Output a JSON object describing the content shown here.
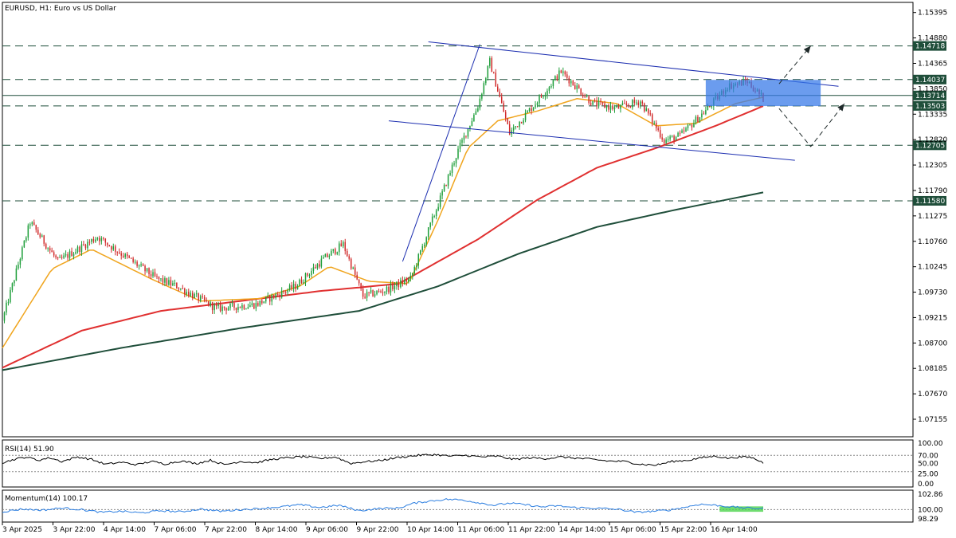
{
  "chart_data": {
    "type": "candlestick",
    "title": "EURUSD, H1:  Euro vs US Dollar",
    "price_axis": {
      "range": [
        1.068,
        1.156
      ],
      "ticks": [
        "1.15395",
        "1.14880",
        "1.14365",
        "1.13850",
        "1.13335",
        "1.12820",
        "1.12305",
        "1.11790",
        "1.11275",
        "1.10760",
        "1.10245",
        "1.09730",
        "1.09215",
        "1.08700",
        "1.08185",
        "1.07670",
        "1.07155"
      ]
    },
    "x_labels": [
      "3 Apr 2025",
      "3 Apr 22:00",
      "4 Apr 14:00",
      "7 Apr 06:00",
      "7 Apr 22:00",
      "8 Apr 14:00",
      "9 Apr 06:00",
      "9 Apr 22:00",
      "10 Apr 14:00",
      "11 Apr 06:00",
      "11 Apr 22:00",
      "14 Apr 14:00",
      "15 Apr 06:00",
      "15 Apr 22:00",
      "16 Apr 14:00"
    ],
    "levels": [
      {
        "value": 1.14718,
        "label": "1.14718",
        "style": "dashed"
      },
      {
        "value": 1.14037,
        "label": "1.14037",
        "style": "dashed"
      },
      {
        "value": 1.13714,
        "label": "1.13714",
        "style": "solid"
      },
      {
        "value": 1.13503,
        "label": "1.13503",
        "style": "dashed"
      },
      {
        "value": 1.12705,
        "label": "1.12705",
        "style": "dashed"
      },
      {
        "value": 1.1158,
        "label": "1.11580",
        "style": "dashed"
      }
    ],
    "colors": {
      "bull": "#1e9e3a",
      "bear": "#d12a2a",
      "ma_fast": "#f0a51e",
      "ma_mid": "#e03030",
      "ma_slow": "#1f4e3a",
      "channel": "#1c2eb0",
      "box": "#3a7be8",
      "rsi": "#000000",
      "momentum": "#2a7de0",
      "momentum_box": "#4cd34c"
    },
    "anchors": [
      [
        0,
        1.0915
      ],
      [
        14,
        1.1115
      ],
      [
        28,
        1.1035
      ],
      [
        48,
        1.1085
      ],
      [
        78,
        1.1
      ],
      [
        88,
        1.0985
      ],
      [
        108,
        1.094
      ],
      [
        128,
        1.0948
      ],
      [
        148,
        1.0985
      ],
      [
        162,
        1.104
      ],
      [
        172,
        1.107
      ],
      [
        182,
        1.0965
      ],
      [
        192,
        1.0975
      ],
      [
        206,
        1.1
      ],
      [
        230,
        1.126
      ],
      [
        240,
        1.135
      ],
      [
        246,
        1.144
      ],
      [
        256,
        1.1295
      ],
      [
        272,
        1.137
      ],
      [
        282,
        1.142
      ],
      [
        298,
        1.1355
      ],
      [
        310,
        1.1345
      ],
      [
        322,
        1.136
      ],
      [
        334,
        1.128
      ],
      [
        342,
        1.129
      ],
      [
        356,
        1.1345
      ],
      [
        366,
        1.139
      ],
      [
        376,
        1.14
      ],
      [
        384,
        1.1365
      ]
    ],
    "ma_fast": [
      [
        0,
        1.086
      ],
      [
        25,
        1.102
      ],
      [
        45,
        1.106
      ],
      [
        75,
        1.1
      ],
      [
        100,
        1.0955
      ],
      [
        130,
        1.096
      ],
      [
        150,
        1.0985
      ],
      [
        165,
        1.1025
      ],
      [
        185,
        1.0995
      ],
      [
        205,
        1.099
      ],
      [
        220,
        1.112
      ],
      [
        235,
        1.1265
      ],
      [
        250,
        1.132
      ],
      [
        270,
        1.134
      ],
      [
        290,
        1.1365
      ],
      [
        310,
        1.1355
      ],
      [
        330,
        1.131
      ],
      [
        350,
        1.1315
      ],
      [
        370,
        1.1355
      ],
      [
        384,
        1.1368
      ]
    ],
    "ma_mid": [
      [
        0,
        1.082
      ],
      [
        40,
        1.0895
      ],
      [
        80,
        1.0935
      ],
      [
        120,
        1.0955
      ],
      [
        160,
        1.0975
      ],
      [
        200,
        1.099
      ],
      [
        240,
        1.108
      ],
      [
        270,
        1.116
      ],
      [
        300,
        1.1225
      ],
      [
        330,
        1.1265
      ],
      [
        360,
        1.131
      ],
      [
        384,
        1.135
      ]
    ],
    "ma_slow": [
      [
        0,
        1.0815
      ],
      [
        60,
        1.086
      ],
      [
        120,
        1.09
      ],
      [
        180,
        1.0935
      ],
      [
        220,
        1.0985
      ],
      [
        260,
        1.105
      ],
      [
        300,
        1.1105
      ],
      [
        340,
        1.114
      ],
      [
        384,
        1.1175
      ]
    ],
    "channel_lines": [
      {
        "from": [
          215,
          1.148
        ],
        "to": [
          422,
          1.139
        ]
      },
      {
        "from": [
          195,
          1.132
        ],
        "to": [
          400,
          1.124
        ]
      },
      {
        "from": [
          202,
          1.1035
        ],
        "to": [
          241,
          1.1475
        ]
      }
    ],
    "box": {
      "from": [
        355,
        1.1403
      ],
      "to": [
        413,
        1.135
      ]
    },
    "arrows": [
      {
        "path": [
          [
            392,
            1.1395
          ],
          [
            408,
            1.1472
          ]
        ]
      },
      {
        "path": [
          [
            392,
            1.1345
          ],
          [
            408,
            1.1268
          ],
          [
            425,
            1.1355
          ]
        ]
      }
    ],
    "rsi": {
      "label": "RSI(14) 51.90",
      "ticks": [
        "100.00",
        "70.00",
        "50.00",
        "25.00",
        "0.00"
      ],
      "dotted_levels": [
        70,
        30
      ],
      "series": [
        [
          0,
          52
        ],
        [
          6,
          60
        ],
        [
          12,
          66
        ],
        [
          18,
          58
        ],
        [
          24,
          64
        ],
        [
          30,
          55
        ],
        [
          38,
          66
        ],
        [
          45,
          60
        ],
        [
          52,
          48
        ],
        [
          60,
          53
        ],
        [
          68,
          47
        ],
        [
          75,
          55
        ],
        [
          82,
          49
        ],
        [
          90,
          56
        ],
        [
          98,
          50
        ],
        [
          105,
          58
        ],
        [
          112,
          47
        ],
        [
          120,
          55
        ],
        [
          128,
          52
        ],
        [
          136,
          60
        ],
        [
          144,
          64
        ],
        [
          152,
          67
        ],
        [
          160,
          62
        ],
        [
          168,
          66
        ],
        [
          176,
          50
        ],
        [
          182,
          54
        ],
        [
          190,
          57
        ],
        [
          200,
          65
        ],
        [
          210,
          70
        ],
        [
          218,
          72
        ],
        [
          226,
          68
        ],
        [
          234,
          70
        ],
        [
          242,
          66
        ],
        [
          250,
          68
        ],
        [
          258,
          60
        ],
        [
          266,
          64
        ],
        [
          274,
          62
        ],
        [
          282,
          66
        ],
        [
          290,
          63
        ],
        [
          298,
          60
        ],
        [
          306,
          56
        ],
        [
          314,
          55
        ],
        [
          322,
          48
        ],
        [
          330,
          46
        ],
        [
          338,
          55
        ],
        [
          346,
          58
        ],
        [
          354,
          65
        ],
        [
          360,
          68
        ],
        [
          366,
          63
        ],
        [
          372,
          66
        ],
        [
          378,
          65
        ],
        [
          384,
          52
        ]
      ]
    },
    "momentum": {
      "label": "Momentum(14) 100.17",
      "ticks": [
        "102.86",
        "100.00",
        "98.29"
      ],
      "dotted_levels": [
        100.0
      ],
      "series": [
        [
          0,
          99.6
        ],
        [
          10,
          100.1
        ],
        [
          20,
          99.9
        ],
        [
          30,
          100.3
        ],
        [
          40,
          100.0
        ],
        [
          50,
          99.5
        ],
        [
          60,
          99.7
        ],
        [
          70,
          99.4
        ],
        [
          80,
          99.8
        ],
        [
          90,
          99.6
        ],
        [
          100,
          100.1
        ],
        [
          110,
          99.7
        ],
        [
          120,
          100.0
        ],
        [
          130,
          100.2
        ],
        [
          140,
          100.5
        ],
        [
          150,
          100.9
        ],
        [
          160,
          100.4
        ],
        [
          170,
          100.8
        ],
        [
          180,
          99.8
        ],
        [
          190,
          100.2
        ],
        [
          200,
          100.3
        ],
        [
          208,
          101.2
        ],
        [
          216,
          101.6
        ],
        [
          224,
          101.9
        ],
        [
          232,
          101.8
        ],
        [
          240,
          101.3
        ],
        [
          248,
          100.8
        ],
        [
          256,
          101.2
        ],
        [
          264,
          100.9
        ],
        [
          272,
          100.5
        ],
        [
          280,
          100.7
        ],
        [
          288,
          100.4
        ],
        [
          296,
          100.3
        ],
        [
          304,
          100.2
        ],
        [
          312,
          100.0
        ],
        [
          320,
          99.5
        ],
        [
          328,
          99.7
        ],
        [
          336,
          99.9
        ],
        [
          344,
          100.4
        ],
        [
          352,
          101.0
        ],
        [
          360,
          100.8
        ],
        [
          368,
          100.5
        ],
        [
          376,
          100.3
        ],
        [
          384,
          100.2
        ]
      ],
      "box": {
        "from": [
          362,
          100.6
        ],
        "to": [
          384,
          99.6
        ]
      }
    }
  }
}
